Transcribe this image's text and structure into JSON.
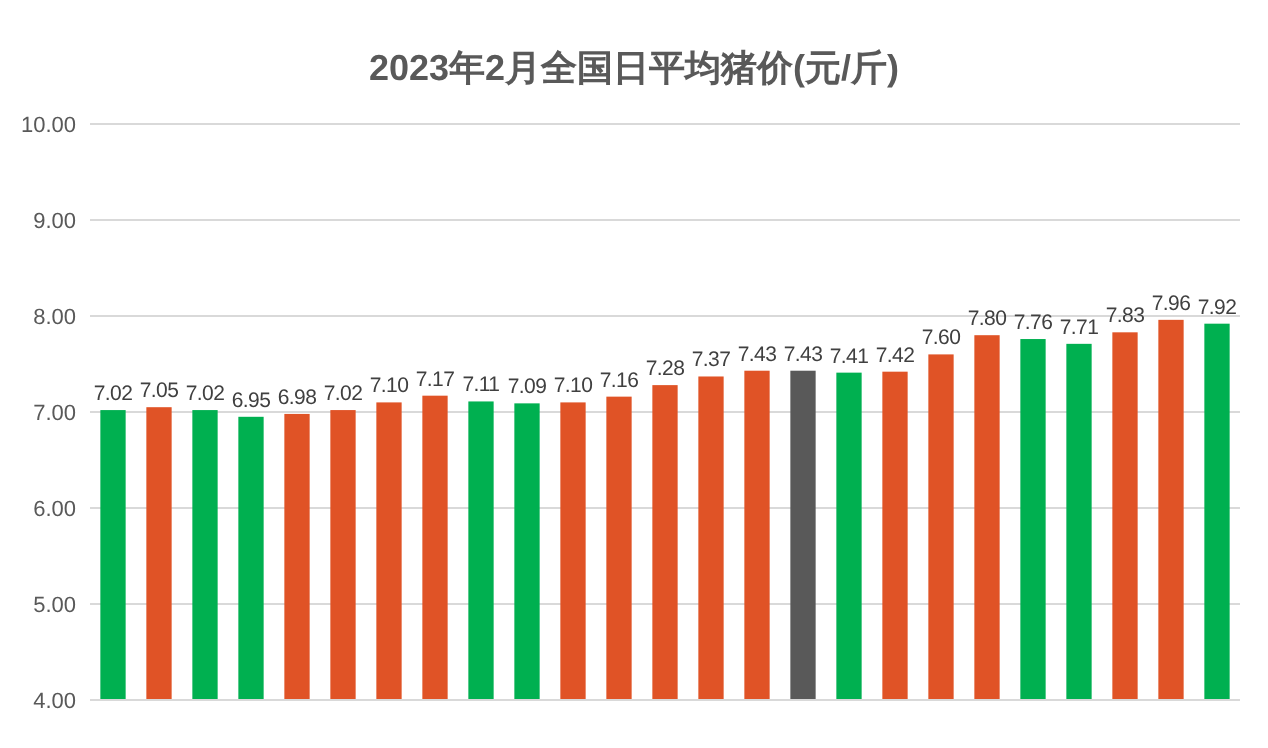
{
  "chart_data": {
    "type": "bar",
    "title": "2023年2月全国日平均猪价(元/斤)",
    "categories": [
      null,
      null,
      null,
      null,
      null,
      null,
      null,
      null,
      null,
      null,
      null,
      null,
      null,
      null,
      null,
      null,
      null,
      null,
      null,
      null,
      null,
      null,
      null,
      null,
      null
    ],
    "values": [
      7.02,
      7.05,
      7.02,
      6.95,
      6.98,
      7.02,
      7.1,
      7.17,
      7.11,
      7.09,
      7.1,
      7.16,
      7.28,
      7.37,
      7.43,
      7.43,
      7.41,
      7.42,
      7.6,
      7.8,
      7.76,
      7.71,
      7.83,
      7.96,
      7.92
    ],
    "value_labels": [
      "7.02",
      "7.05",
      "7.02",
      "6.95",
      "6.98",
      "7.02",
      "7.10",
      "7.17",
      "7.11",
      "7.09",
      "7.10",
      "7.16",
      "7.28",
      "7.37",
      "7.43",
      "7.43",
      "7.41",
      "7.42",
      "7.60",
      "7.80",
      "7.76",
      "7.71",
      "7.83",
      "7.96",
      "7.92"
    ],
    "colors": [
      "#00b050",
      "#e05326",
      "#00b050",
      "#00b050",
      "#e05326",
      "#e05326",
      "#e05326",
      "#e05326",
      "#00b050",
      "#00b050",
      "#e05326",
      "#e05326",
      "#e05326",
      "#e05326",
      "#e05326",
      "#595959",
      "#00b050",
      "#e05326",
      "#e05326",
      "#e05326",
      "#00b050",
      "#00b050",
      "#e05326",
      "#e05326",
      "#00b050"
    ],
    "ylim": [
      4,
      10
    ],
    "yticks": [
      {
        "value": 4,
        "label": "4.00"
      },
      {
        "value": 5,
        "label": "5.00"
      },
      {
        "value": 6,
        "label": "6.00"
      },
      {
        "value": 7,
        "label": "7.00"
      },
      {
        "value": 8,
        "label": "8.00"
      },
      {
        "value": 9,
        "label": "9.00"
      },
      {
        "value": 10,
        "label": "10.00"
      }
    ],
    "grid": "y"
  }
}
